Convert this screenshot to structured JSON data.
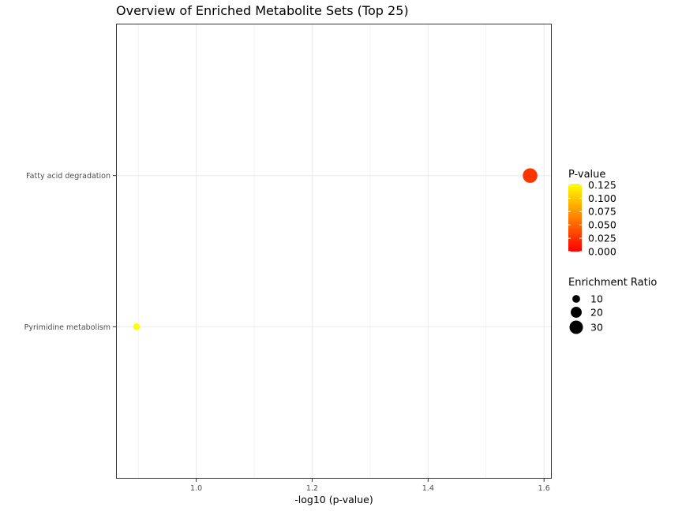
{
  "chart_data": {
    "type": "scatter",
    "title": "Overview of Enriched Metabolite Sets (Top 25)",
    "xlabel": "-log10 (p-value)",
    "ylabel": "",
    "xlim": [
      0.863,
      1.612
    ],
    "x_ticks": [
      {
        "value": 1.0,
        "label": "1.0"
      },
      {
        "value": 1.2,
        "label": "1.2"
      },
      {
        "value": 1.4,
        "label": "1.4"
      },
      {
        "value": 1.6,
        "label": "1.6"
      }
    ],
    "categories": [
      "Pyrimidine metabolism",
      "Fatty acid degradation"
    ],
    "grid": true,
    "points": [
      {
        "name": "Fatty acid degradation",
        "x": 1.576,
        "p_value": 0.0265,
        "enrichment_ratio": 35.4
      },
      {
        "name": "Pyrimidine metabolism",
        "x": 0.897,
        "p_value": 0.127,
        "enrichment_ratio": 7.7
      }
    ],
    "legend": {
      "placement": "right",
      "color": {
        "title": "P-value",
        "range": [
          0,
          0.127
        ],
        "ticks": [
          "0.125",
          "0.100",
          "0.075",
          "0.050",
          "0.025",
          "0.000"
        ],
        "low_color": "#FF0000",
        "high_color": "#FFFF00"
      },
      "size": {
        "title": "Enrichment Ratio",
        "ticks": [
          "10",
          "20",
          "30"
        ]
      }
    }
  }
}
